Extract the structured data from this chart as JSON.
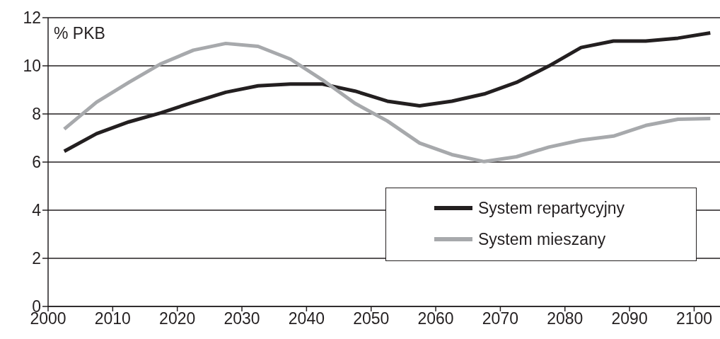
{
  "chart_data": {
    "type": "line",
    "ylabel": "% PKB",
    "x": [
      2002.5,
      2007.5,
      2012.5,
      2017.5,
      2022.5,
      2027.5,
      2032.5,
      2037.5,
      2042.5,
      2047.5,
      2052.5,
      2057.5,
      2062.5,
      2067.5,
      2072.5,
      2077.5,
      2082.5,
      2087.5,
      2092.5,
      2097.5,
      2102.5
    ],
    "series": [
      {
        "name": "System repartycyjny",
        "color": "#231f20",
        "values": [
          6.45,
          7.18,
          7.67,
          8.05,
          8.49,
          8.9,
          9.17,
          9.24,
          9.24,
          8.95,
          8.53,
          8.34,
          8.53,
          8.83,
          9.31,
          9.99,
          10.76,
          11.03,
          11.03,
          11.15,
          11.37
        ]
      },
      {
        "name": "System mieszany",
        "color": "#a7a9ac",
        "values": [
          7.37,
          8.49,
          9.31,
          10.09,
          10.65,
          10.93,
          10.81,
          10.28,
          9.41,
          8.44,
          7.71,
          6.79,
          6.31,
          6.02,
          6.22,
          6.62,
          6.91,
          7.08,
          7.52,
          7.78,
          7.81
        ]
      }
    ],
    "xlim": [
      2000,
      2104
    ],
    "xticks": [
      2000,
      2010,
      2020,
      2030,
      2040,
      2050,
      2060,
      2070,
      2080,
      2090,
      2100
    ],
    "ylim": [
      0,
      12
    ],
    "yticks": [
      0,
      2,
      4,
      6,
      8,
      10,
      12
    ],
    "grid": "y",
    "legend": "right"
  }
}
